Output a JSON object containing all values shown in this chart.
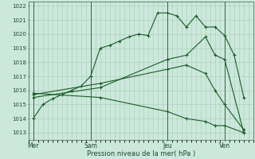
{
  "xlabel": "Pression niveau de la mer( hPa )",
  "bg_color": "#cce8dc",
  "grid_color": "#a8ccb8",
  "line_color": "#1a5c28",
  "ylim": [
    1012.5,
    1022.3
  ],
  "yticks": [
    1013,
    1014,
    1015,
    1016,
    1017,
    1018,
    1019,
    1020,
    1021,
    1022
  ],
  "day_labels": [
    "Mer",
    "Sam",
    "Jeu",
    "Ven"
  ],
  "day_positions": [
    0,
    12,
    28,
    40
  ],
  "xlim": [
    -1,
    46
  ],
  "series": [
    {
      "x": [
        0,
        2,
        4,
        6,
        8,
        10,
        12,
        14,
        16,
        18,
        20,
        22,
        24,
        26,
        28,
        30,
        32,
        34,
        36,
        38,
        40,
        42,
        44
      ],
      "y": [
        1014.0,
        1015.0,
        1015.4,
        1015.7,
        1016.0,
        1016.3,
        1017.0,
        1019.0,
        1019.2,
        1019.5,
        1019.8,
        1020.0,
        1019.9,
        1021.5,
        1021.5,
        1021.3,
        1020.5,
        1021.3,
        1020.5,
        1020.5,
        1019.9,
        1018.5,
        1015.5
      ]
    },
    {
      "x": [
        0,
        14,
        28,
        32,
        36,
        38,
        40,
        44
      ],
      "y": [
        1015.5,
        1016.2,
        1018.2,
        1018.5,
        1019.8,
        1018.5,
        1018.2,
        1013.0
      ]
    },
    {
      "x": [
        0,
        14,
        28,
        32,
        36,
        38,
        40,
        44
      ],
      "y": [
        1015.7,
        1016.5,
        1017.5,
        1017.8,
        1017.2,
        1016.0,
        1015.0,
        1013.2
      ]
    },
    {
      "x": [
        0,
        14,
        28,
        32,
        36,
        38,
        40,
        44
      ],
      "y": [
        1015.8,
        1015.5,
        1014.5,
        1014.0,
        1013.8,
        1013.5,
        1013.5,
        1013.0
      ]
    }
  ],
  "vlines": [
    0,
    12,
    28,
    40
  ]
}
